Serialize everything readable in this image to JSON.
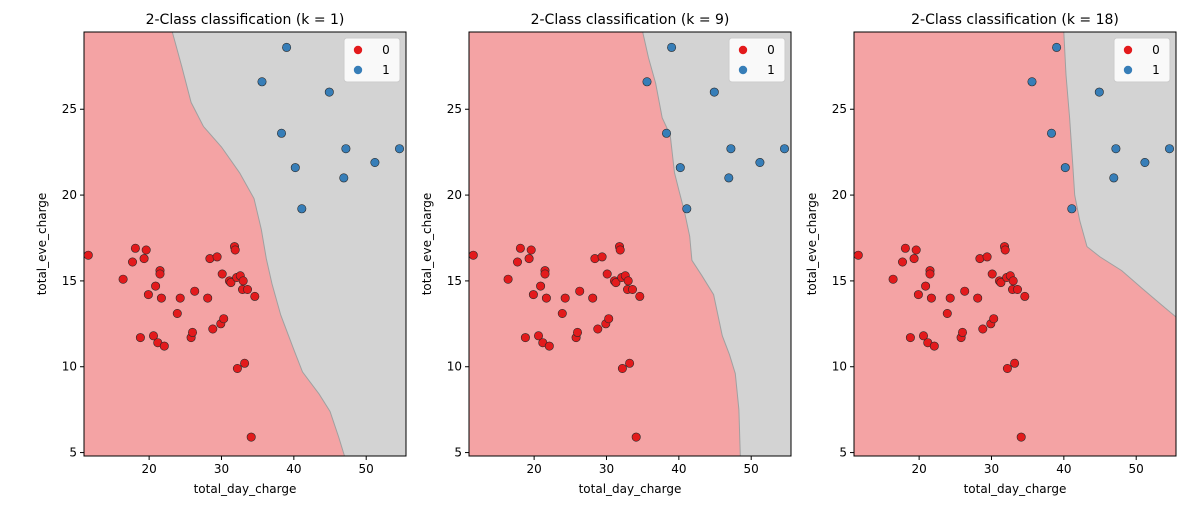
{
  "colors": {
    "class0_region": "#f4a3a4",
    "class1_region": "#d3d3d3",
    "class0_point": "#e31a1c",
    "class1_point": "#377eb8",
    "boundary": "#a0a0a0"
  },
  "chart_data": [
    {
      "type": "scatter",
      "title": "2-Class classification (k = 1)",
      "xlabel": "total_day_charge",
      "ylabel": "total_eve_charge",
      "xlim": [
        11,
        55.5
      ],
      "ylim": [
        4.8,
        29.5
      ],
      "xticks": [
        20,
        30,
        40,
        50
      ],
      "yticks": [
        5,
        10,
        15,
        20,
        25
      ],
      "legend": {
        "placement": "top-right",
        "entries": [
          "0",
          "1"
        ]
      },
      "grid": false,
      "boundary": [
        [
          23.2,
          29.5
        ],
        [
          24.5,
          27.5
        ],
        [
          25.8,
          25.4
        ],
        [
          27.5,
          24.0
        ],
        [
          30.0,
          22.8
        ],
        [
          32.5,
          21.3
        ],
        [
          34.5,
          19.8
        ],
        [
          35.5,
          18.0
        ],
        [
          36.2,
          16.3
        ],
        [
          37.0,
          14.8
        ],
        [
          38.2,
          13.0
        ],
        [
          40.0,
          11.0
        ],
        [
          41.2,
          9.7
        ],
        [
          43.5,
          8.4
        ],
        [
          45.0,
          7.4
        ],
        [
          46.2,
          5.9
        ],
        [
          47.0,
          4.8
        ]
      ],
      "series": [
        {
          "name": "0",
          "points": [
            [
              11.6,
              16.5
            ],
            [
              16.4,
              15.1
            ],
            [
              17.7,
              16.1
            ],
            [
              18.1,
              16.9
            ],
            [
              18.8,
              11.7
            ],
            [
              19.3,
              16.3
            ],
            [
              19.6,
              16.8
            ],
            [
              19.9,
              14.2
            ],
            [
              20.6,
              11.8
            ],
            [
              20.9,
              14.7
            ],
            [
              21.2,
              11.4
            ],
            [
              21.5,
              15.6
            ],
            [
              21.5,
              15.4
            ],
            [
              21.7,
              14.0
            ],
            [
              22.1,
              11.2
            ],
            [
              23.9,
              13.1
            ],
            [
              24.3,
              14.0
            ],
            [
              25.8,
              11.7
            ],
            [
              26.0,
              12.0
            ],
            [
              26.3,
              14.4
            ],
            [
              28.1,
              14.0
            ],
            [
              28.4,
              16.3
            ],
            [
              28.8,
              12.2
            ],
            [
              29.4,
              16.4
            ],
            [
              29.9,
              12.5
            ],
            [
              30.1,
              15.4
            ],
            [
              30.3,
              12.8
            ],
            [
              31.1,
              15.0
            ],
            [
              31.3,
              14.9
            ],
            [
              31.8,
              17.0
            ],
            [
              31.9,
              16.8
            ],
            [
              32.1,
              15.2
            ],
            [
              32.2,
              9.9
            ],
            [
              32.6,
              15.3
            ],
            [
              32.9,
              14.5
            ],
            [
              33.0,
              15.0
            ],
            [
              33.2,
              10.2
            ],
            [
              33.6,
              14.5
            ],
            [
              34.1,
              5.9
            ],
            [
              34.6,
              14.1
            ]
          ]
        },
        {
          "name": "1",
          "points": [
            [
              35.6,
              26.6
            ],
            [
              38.3,
              23.6
            ],
            [
              39.0,
              28.6
            ],
            [
              40.2,
              21.6
            ],
            [
              41.1,
              19.2
            ],
            [
              44.9,
              26.0
            ],
            [
              46.9,
              21.0
            ],
            [
              47.2,
              22.7
            ],
            [
              51.2,
              21.9
            ],
            [
              54.6,
              22.7
            ]
          ]
        }
      ]
    },
    {
      "type": "scatter",
      "title": "2-Class classification (k = 9)",
      "xlabel": "total_day_charge",
      "ylabel": "total_eve_charge",
      "xlim": [
        11,
        55.5
      ],
      "ylim": [
        4.8,
        29.5
      ],
      "xticks": [
        20,
        30,
        40,
        50
      ],
      "yticks": [
        5,
        10,
        15,
        20,
        25
      ],
      "legend": {
        "placement": "top-right",
        "entries": [
          "0",
          "1"
        ]
      },
      "grid": false,
      "boundary": [
        [
          35.0,
          29.5
        ],
        [
          35.8,
          28.0
        ],
        [
          36.8,
          26.5
        ],
        [
          37.7,
          24.5
        ],
        [
          38.8,
          23.5
        ],
        [
          39.4,
          21.3
        ],
        [
          40.0,
          20.3
        ],
        [
          40.8,
          19.0
        ],
        [
          41.5,
          17.6
        ],
        [
          41.8,
          16.2
        ],
        [
          43.2,
          15.3
        ],
        [
          44.8,
          14.2
        ],
        [
          46.0,
          11.8
        ],
        [
          47.0,
          10.7
        ],
        [
          47.8,
          9.6
        ],
        [
          48.3,
          7.5
        ],
        [
          48.5,
          4.8
        ]
      ],
      "series": [
        {
          "name": "0",
          "points": [
            [
              11.6,
              16.5
            ],
            [
              16.4,
              15.1
            ],
            [
              17.7,
              16.1
            ],
            [
              18.1,
              16.9
            ],
            [
              18.8,
              11.7
            ],
            [
              19.3,
              16.3
            ],
            [
              19.6,
              16.8
            ],
            [
              19.9,
              14.2
            ],
            [
              20.6,
              11.8
            ],
            [
              20.9,
              14.7
            ],
            [
              21.2,
              11.4
            ],
            [
              21.5,
              15.6
            ],
            [
              21.5,
              15.4
            ],
            [
              21.7,
              14.0
            ],
            [
              22.1,
              11.2
            ],
            [
              23.9,
              13.1
            ],
            [
              24.3,
              14.0
            ],
            [
              25.8,
              11.7
            ],
            [
              26.0,
              12.0
            ],
            [
              26.3,
              14.4
            ],
            [
              28.1,
              14.0
            ],
            [
              28.4,
              16.3
            ],
            [
              28.8,
              12.2
            ],
            [
              29.4,
              16.4
            ],
            [
              29.9,
              12.5
            ],
            [
              30.1,
              15.4
            ],
            [
              30.3,
              12.8
            ],
            [
              31.1,
              15.0
            ],
            [
              31.3,
              14.9
            ],
            [
              31.8,
              17.0
            ],
            [
              31.9,
              16.8
            ],
            [
              32.1,
              15.2
            ],
            [
              32.2,
              9.9
            ],
            [
              32.6,
              15.3
            ],
            [
              32.9,
              14.5
            ],
            [
              33.0,
              15.0
            ],
            [
              33.2,
              10.2
            ],
            [
              33.6,
              14.5
            ],
            [
              34.1,
              5.9
            ],
            [
              34.6,
              14.1
            ]
          ]
        },
        {
          "name": "1",
          "points": [
            [
              35.6,
              26.6
            ],
            [
              38.3,
              23.6
            ],
            [
              39.0,
              28.6
            ],
            [
              40.2,
              21.6
            ],
            [
              41.1,
              19.2
            ],
            [
              44.9,
              26.0
            ],
            [
              46.9,
              21.0
            ],
            [
              47.2,
              22.7
            ],
            [
              51.2,
              21.9
            ],
            [
              54.6,
              22.7
            ]
          ]
        }
      ]
    },
    {
      "type": "scatter",
      "title": "2-Class classification (k = 18)",
      "xlabel": "total_day_charge",
      "ylabel": "total_eve_charge",
      "xlim": [
        11,
        55.5
      ],
      "ylim": [
        4.8,
        29.5
      ],
      "xticks": [
        20,
        30,
        40,
        50
      ],
      "yticks": [
        5,
        10,
        15,
        20,
        25
      ],
      "legend": {
        "placement": "top-right",
        "entries": [
          "0",
          "1"
        ]
      },
      "grid": false,
      "boundary": [
        [
          40.0,
          29.5
        ],
        [
          40.3,
          27.0
        ],
        [
          40.8,
          24.5
        ],
        [
          41.2,
          22.0
        ],
        [
          41.5,
          20.0
        ],
        [
          42.2,
          18.5
        ],
        [
          43.2,
          17.0
        ],
        [
          45.0,
          16.4
        ],
        [
          48.0,
          15.6
        ],
        [
          51.0,
          14.5
        ],
        [
          53.5,
          13.6
        ],
        [
          55.5,
          12.9
        ]
      ],
      "series": [
        {
          "name": "0",
          "points": [
            [
              11.6,
              16.5
            ],
            [
              16.4,
              15.1
            ],
            [
              17.7,
              16.1
            ],
            [
              18.1,
              16.9
            ],
            [
              18.8,
              11.7
            ],
            [
              19.3,
              16.3
            ],
            [
              19.6,
              16.8
            ],
            [
              19.9,
              14.2
            ],
            [
              20.6,
              11.8
            ],
            [
              20.9,
              14.7
            ],
            [
              21.2,
              11.4
            ],
            [
              21.5,
              15.6
            ],
            [
              21.5,
              15.4
            ],
            [
              21.7,
              14.0
            ],
            [
              22.1,
              11.2
            ],
            [
              23.9,
              13.1
            ],
            [
              24.3,
              14.0
            ],
            [
              25.8,
              11.7
            ],
            [
              26.0,
              12.0
            ],
            [
              26.3,
              14.4
            ],
            [
              28.1,
              14.0
            ],
            [
              28.4,
              16.3
            ],
            [
              28.8,
              12.2
            ],
            [
              29.4,
              16.4
            ],
            [
              29.9,
              12.5
            ],
            [
              30.1,
              15.4
            ],
            [
              30.3,
              12.8
            ],
            [
              31.1,
              15.0
            ],
            [
              31.3,
              14.9
            ],
            [
              31.8,
              17.0
            ],
            [
              31.9,
              16.8
            ],
            [
              32.1,
              15.2
            ],
            [
              32.2,
              9.9
            ],
            [
              32.6,
              15.3
            ],
            [
              32.9,
              14.5
            ],
            [
              33.0,
              15.0
            ],
            [
              33.2,
              10.2
            ],
            [
              33.6,
              14.5
            ],
            [
              34.1,
              5.9
            ],
            [
              34.6,
              14.1
            ]
          ]
        },
        {
          "name": "1",
          "points": [
            [
              35.6,
              26.6
            ],
            [
              38.3,
              23.6
            ],
            [
              39.0,
              28.6
            ],
            [
              40.2,
              21.6
            ],
            [
              41.1,
              19.2
            ],
            [
              44.9,
              26.0
            ],
            [
              46.9,
              21.0
            ],
            [
              47.2,
              22.7
            ],
            [
              51.2,
              21.9
            ],
            [
              54.6,
              22.7
            ]
          ]
        }
      ]
    }
  ]
}
